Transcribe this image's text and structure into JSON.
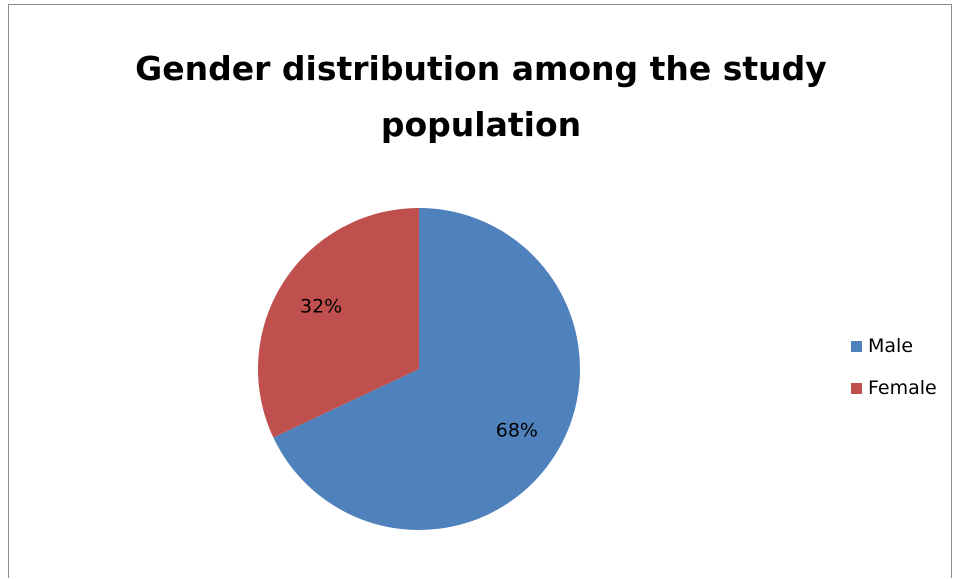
{
  "chart_data": {
    "type": "pie",
    "title": "Gender distribution among the study population",
    "title_lines": [
      "Gender distribution among the study",
      "population"
    ],
    "categories": [
      "Male",
      "Female"
    ],
    "values": [
      68,
      32
    ],
    "value_labels": [
      "68%",
      "32%"
    ],
    "colors": [
      "#4f81bd",
      "#c0504d"
    ],
    "legend_placement": "right",
    "start_angle_deg": 0,
    "direction": "clockwise"
  }
}
